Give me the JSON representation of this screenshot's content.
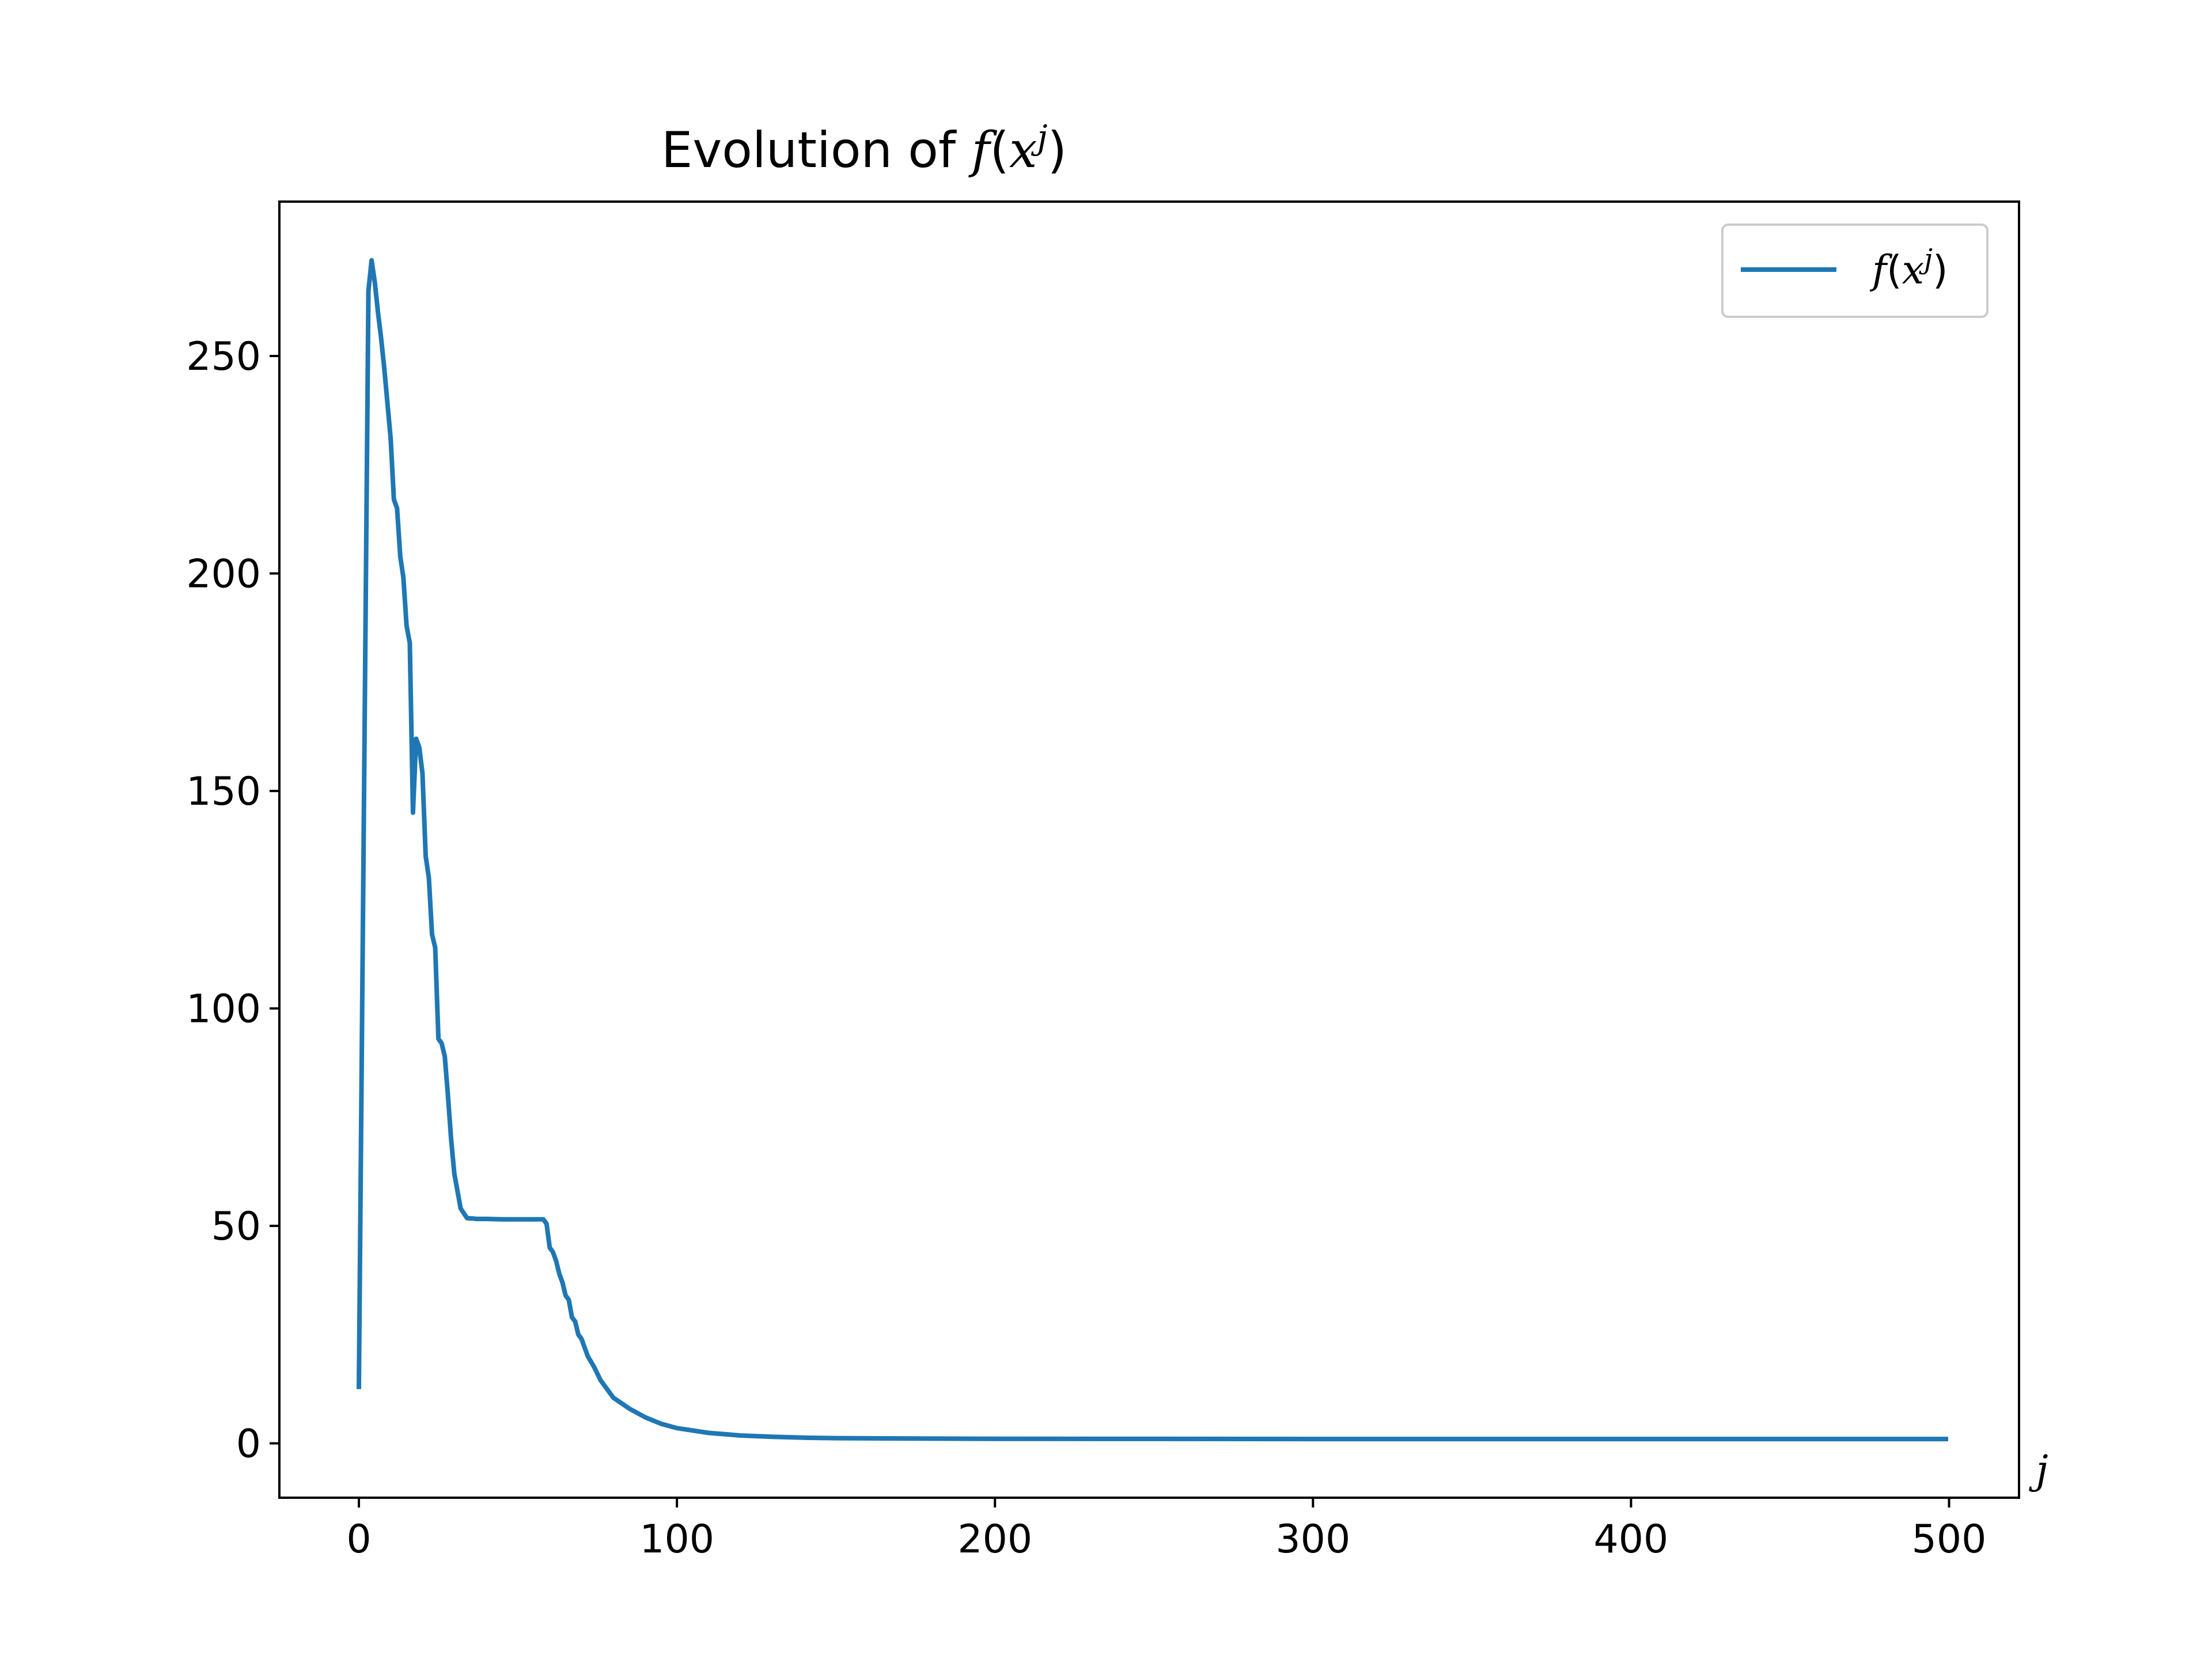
{
  "chart_data": {
    "type": "line",
    "title": "Evolution of f(x^j)",
    "title_parts": {
      "prefix": "Evolution of ",
      "func": "f",
      "open": "(",
      "var": "x",
      "sup": "j",
      "close": ")"
    },
    "xlabel": "j",
    "ylabel": "",
    "xlim": [
      -25,
      522
    ],
    "ylim": [
      -12.5,
      285.5
    ],
    "xticks": [
      0,
      100,
      200,
      300,
      400,
      500
    ],
    "yticks": [
      0,
      50,
      100,
      150,
      200,
      250
    ],
    "grid": false,
    "legend": {
      "placement": "top-right",
      "entries": [
        {
          "func": "f",
          "open": "(",
          "var": "x",
          "sup": "j",
          "close": ")"
        }
      ]
    },
    "series": [
      {
        "name": "f(x^j)",
        "color": "#1f77b4",
        "x": [
          0,
          3,
          4,
          5,
          6,
          7,
          8,
          9,
          10,
          11,
          12,
          13,
          14,
          15,
          16,
          17,
          18,
          19,
          20,
          21,
          22,
          23,
          24,
          25,
          26,
          27,
          28,
          29,
          30,
          32,
          34,
          35,
          36,
          37,
          38,
          40,
          45,
          50,
          55,
          58,
          59,
          60,
          61,
          62,
          63,
          64,
          65,
          66,
          67,
          68,
          69,
          70,
          72,
          74,
          76,
          78,
          80,
          85,
          90,
          95,
          100,
          110,
          120,
          130,
          140,
          150,
          175,
          200,
          250,
          300,
          350,
          400,
          450,
          499
        ],
        "y": [
          13,
          265,
          272,
          267,
          260,
          254,
          247,
          239,
          231,
          217,
          215,
          204,
          199,
          188,
          184,
          145,
          162,
          160,
          154,
          135,
          130,
          117,
          114,
          93,
          92,
          89,
          80,
          70,
          62,
          54,
          51.8,
          51.7,
          51.7,
          51.6,
          51.6,
          51.6,
          51.5,
          51.5,
          51.5,
          51.5,
          50.5,
          45,
          44,
          42,
          39,
          37,
          34,
          33,
          29,
          28,
          25,
          24,
          20,
          17.5,
          14.5,
          12.5,
          10.5,
          8,
          6,
          4.5,
          3.5,
          2.4,
          1.8,
          1.5,
          1.3,
          1.2,
          1.1,
          1.05,
          1.02,
          1.0,
          1.0,
          1.0,
          1.0,
          1.0
        ]
      }
    ]
  }
}
